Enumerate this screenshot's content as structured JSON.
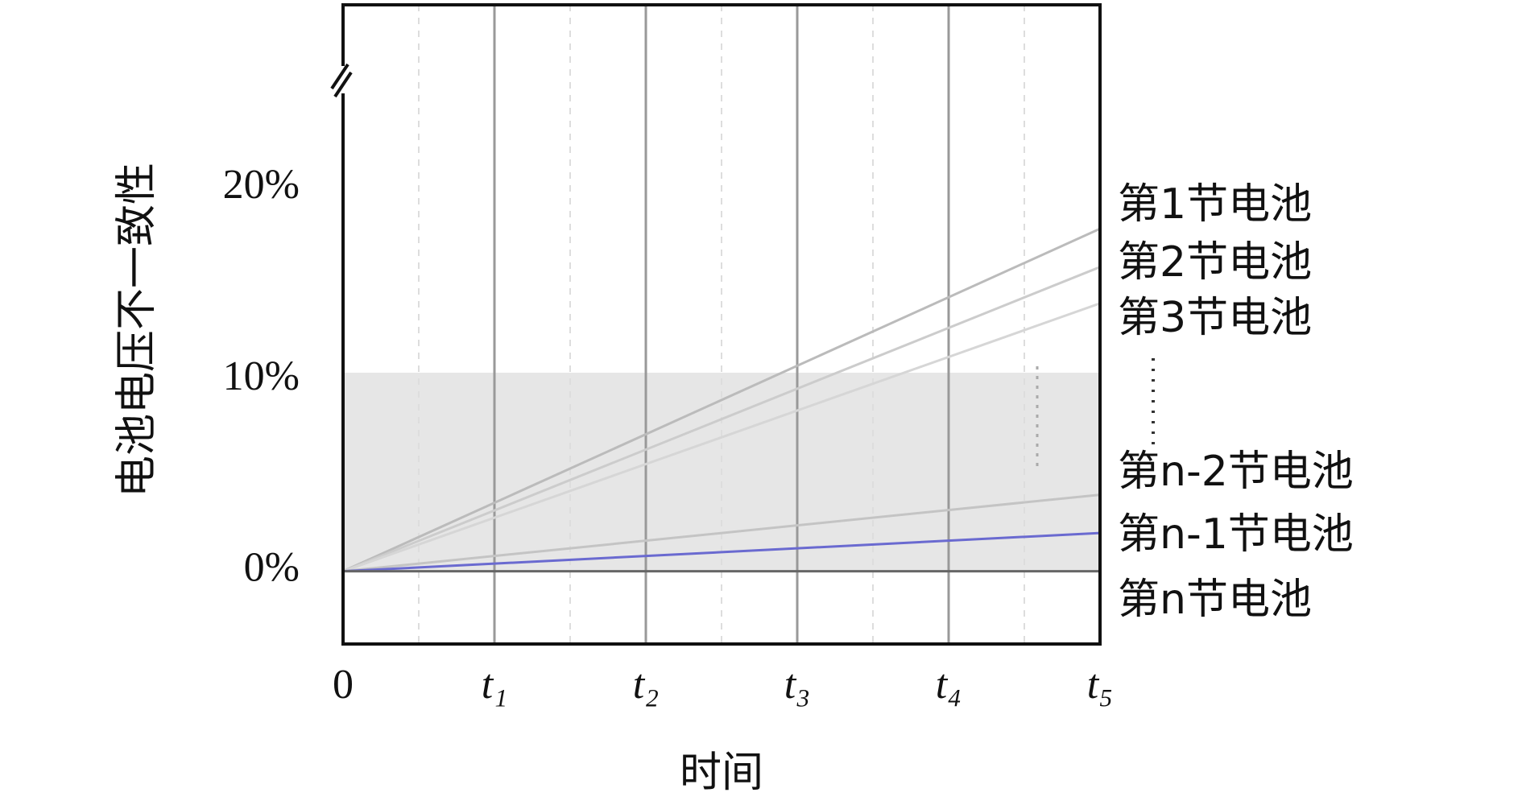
{
  "chart_data": {
    "type": "line",
    "x_label": "时间",
    "y_label": "电池电压不一致性",
    "x": [
      0,
      5
    ],
    "xlim": [
      0,
      5
    ],
    "xticks": [
      0,
      {
        "value": 1,
        "label": "t₁"
      },
      {
        "value": 2,
        "label": "t₂"
      },
      {
        "value": 3,
        "label": "t₃"
      },
      {
        "value": 4,
        "label": "t₄"
      },
      {
        "value": 5,
        "label": "t₅"
      }
    ],
    "ylim": [
      -3.8,
      29.6
    ],
    "yticks": [
      {
        "value": 0,
        "label": "0%"
      },
      {
        "value": 10,
        "label": "10%"
      },
      {
        "value": 20,
        "label": "20%"
      }
    ],
    "grid": true,
    "series": [
      {
        "name": "第1节电池",
        "color": "#bbbbbb",
        "values": [
          0,
          17.9
        ]
      },
      {
        "name": "第2节电池",
        "color": "#cccccc",
        "values": [
          0,
          15.9
        ]
      },
      {
        "name": "第3节电池",
        "color": "#d6d6d6",
        "values": [
          0,
          14.0
        ]
      },
      {
        "name": "第n-2节电池",
        "color": "#c4c4c4",
        "values": [
          0,
          4.0
        ]
      },
      {
        "name": "第n-1节电池",
        "color": "#6a6ad0",
        "values": [
          0,
          2.0
        ]
      },
      {
        "name": "第n节电池",
        "color": "#666666",
        "values": [
          0,
          0
        ]
      }
    ]
  }
}
